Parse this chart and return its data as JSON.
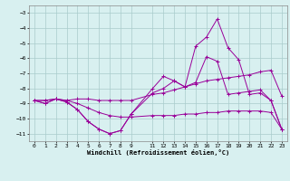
{
  "x": [
    0,
    1,
    2,
    3,
    4,
    5,
    6,
    7,
    8,
    9,
    11,
    12,
    13,
    14,
    15,
    16,
    17,
    18,
    19,
    20,
    21,
    22,
    23
  ],
  "line1": [
    -8.8,
    -9.0,
    -8.7,
    -8.9,
    -9.4,
    -10.2,
    -10.7,
    -11.0,
    -10.8,
    -9.7,
    -8.3,
    -8.0,
    -7.5,
    -7.9,
    -7.6,
    -5.9,
    -6.2,
    -8.4,
    -8.3,
    -8.2,
    -8.1,
    -8.8,
    -10.7
  ],
  "line2": [
    -8.8,
    -9.0,
    -8.7,
    -8.9,
    -9.4,
    -10.2,
    -10.7,
    -11.0,
    -10.8,
    -9.7,
    -8.0,
    -7.2,
    -7.5,
    -7.9,
    -5.2,
    -4.6,
    -3.4,
    -5.3,
    -6.1,
    -8.4,
    -8.3,
    -8.8,
    -10.7
  ],
  "line3": [
    -8.8,
    -8.8,
    -8.7,
    -8.8,
    -8.7,
    -8.7,
    -8.8,
    -8.8,
    -8.8,
    -8.8,
    -8.4,
    -8.3,
    -8.1,
    -7.9,
    -7.7,
    -7.5,
    -7.4,
    -7.3,
    -7.2,
    -7.1,
    -6.9,
    -6.8,
    -8.5
  ],
  "line4": [
    -8.8,
    -8.8,
    -8.7,
    -8.8,
    -9.0,
    -9.3,
    -9.6,
    -9.8,
    -9.9,
    -9.9,
    -9.8,
    -9.8,
    -9.8,
    -9.7,
    -9.7,
    -9.6,
    -9.6,
    -9.5,
    -9.5,
    -9.5,
    -9.5,
    -9.6,
    -10.7
  ],
  "color": "#990099",
  "bg_color": "#d8f0f0",
  "grid_color": "#aacccc",
  "xlabel": "Windchill (Refroidissement éolien,°C)",
  "ylim": [
    -11.5,
    -2.5
  ],
  "yticks": [
    -11,
    -10,
    -9,
    -8,
    -7,
    -6,
    -5,
    -4,
    -3
  ],
  "xticks": [
    0,
    1,
    2,
    3,
    4,
    5,
    6,
    7,
    8,
    9,
    11,
    12,
    13,
    14,
    15,
    16,
    17,
    18,
    19,
    20,
    21,
    22,
    23
  ],
  "xlim": [
    -0.5,
    23.5
  ]
}
